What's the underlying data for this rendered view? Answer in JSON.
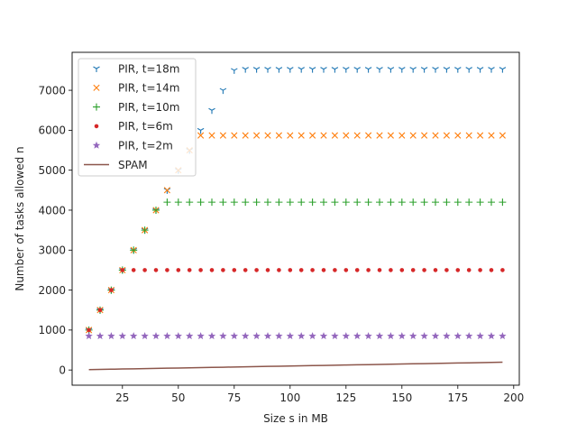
{
  "chart_data": {
    "type": "scatter",
    "xlabel": "Size s in MB",
    "ylabel": "Number of tasks allowed n",
    "xlim": [
      2.5,
      202.5
    ],
    "ylim": [
      -380,
      7950
    ],
    "xticks": [
      25,
      50,
      75,
      100,
      125,
      150,
      175,
      200
    ],
    "yticks": [
      0,
      1000,
      2000,
      3000,
      4000,
      5000,
      6000,
      7000
    ],
    "grid": false,
    "legend": "top-left",
    "x": [
      10,
      15,
      20,
      25,
      30,
      35,
      40,
      45,
      50,
      55,
      60,
      65,
      70,
      75,
      80,
      85,
      90,
      95,
      100,
      105,
      110,
      115,
      120,
      125,
      130,
      135,
      140,
      145,
      150,
      155,
      160,
      165,
      170,
      175,
      180,
      185,
      190,
      195
    ],
    "series": [
      {
        "name": "PIR, t=18m",
        "marker": "tri_down",
        "color": "#1f77b4",
        "values": [
          1000,
          1500,
          2000,
          2500,
          3000,
          3500,
          4000,
          4500,
          5000,
          5500,
          6000,
          6500,
          7000,
          7500,
          7530,
          7530,
          7530,
          7530,
          7530,
          7530,
          7530,
          7530,
          7530,
          7530,
          7530,
          7530,
          7530,
          7530,
          7530,
          7530,
          7530,
          7530,
          7530,
          7530,
          7530,
          7530,
          7530,
          7530
        ]
      },
      {
        "name": "PIR, t=14m",
        "marker": "x",
        "color": "#ff7f0e",
        "values": [
          1000,
          1500,
          2000,
          2500,
          3000,
          3500,
          4000,
          4500,
          5000,
          5500,
          5870,
          5870,
          5870,
          5870,
          5870,
          5870,
          5870,
          5870,
          5870,
          5870,
          5870,
          5870,
          5870,
          5870,
          5870,
          5870,
          5870,
          5870,
          5870,
          5870,
          5870,
          5870,
          5870,
          5870,
          5870,
          5870,
          5870,
          5870
        ]
      },
      {
        "name": "PIR, t=10m",
        "marker": "plus",
        "color": "#2ca02c",
        "values": [
          1000,
          1500,
          2000,
          2500,
          3000,
          3500,
          4000,
          4200,
          4200,
          4200,
          4200,
          4200,
          4200,
          4200,
          4200,
          4200,
          4200,
          4200,
          4200,
          4200,
          4200,
          4200,
          4200,
          4200,
          4200,
          4200,
          4200,
          4200,
          4200,
          4200,
          4200,
          4200,
          4200,
          4200,
          4200,
          4200,
          4200,
          4200
        ]
      },
      {
        "name": "PIR, t=6m",
        "marker": "dot",
        "color": "#d62728",
        "values": [
          1000,
          1500,
          2000,
          2500,
          2500,
          2500,
          2500,
          2500,
          2500,
          2500,
          2500,
          2500,
          2500,
          2500,
          2500,
          2500,
          2500,
          2500,
          2500,
          2500,
          2500,
          2500,
          2500,
          2500,
          2500,
          2500,
          2500,
          2500,
          2500,
          2500,
          2500,
          2500,
          2500,
          2500,
          2500,
          2500,
          2500,
          2500
        ]
      },
      {
        "name": "PIR, t=2m",
        "marker": "star",
        "color": "#9467bd",
        "values": [
          850,
          850,
          850,
          850,
          850,
          850,
          850,
          850,
          850,
          850,
          850,
          850,
          850,
          850,
          850,
          850,
          850,
          850,
          850,
          850,
          850,
          850,
          850,
          850,
          850,
          850,
          850,
          850,
          850,
          850,
          850,
          850,
          850,
          850,
          850,
          850,
          850,
          850
        ]
      },
      {
        "name": "SPAM",
        "marker": "line",
        "color": "#8c564b",
        "values": [
          10,
          15,
          20,
          25,
          30,
          35,
          40,
          45,
          50,
          55,
          60,
          65,
          70,
          75,
          80,
          85,
          90,
          95,
          100,
          105,
          110,
          115,
          120,
          125,
          130,
          135,
          140,
          145,
          150,
          155,
          160,
          165,
          170,
          175,
          180,
          185,
          190,
          195
        ]
      }
    ]
  }
}
